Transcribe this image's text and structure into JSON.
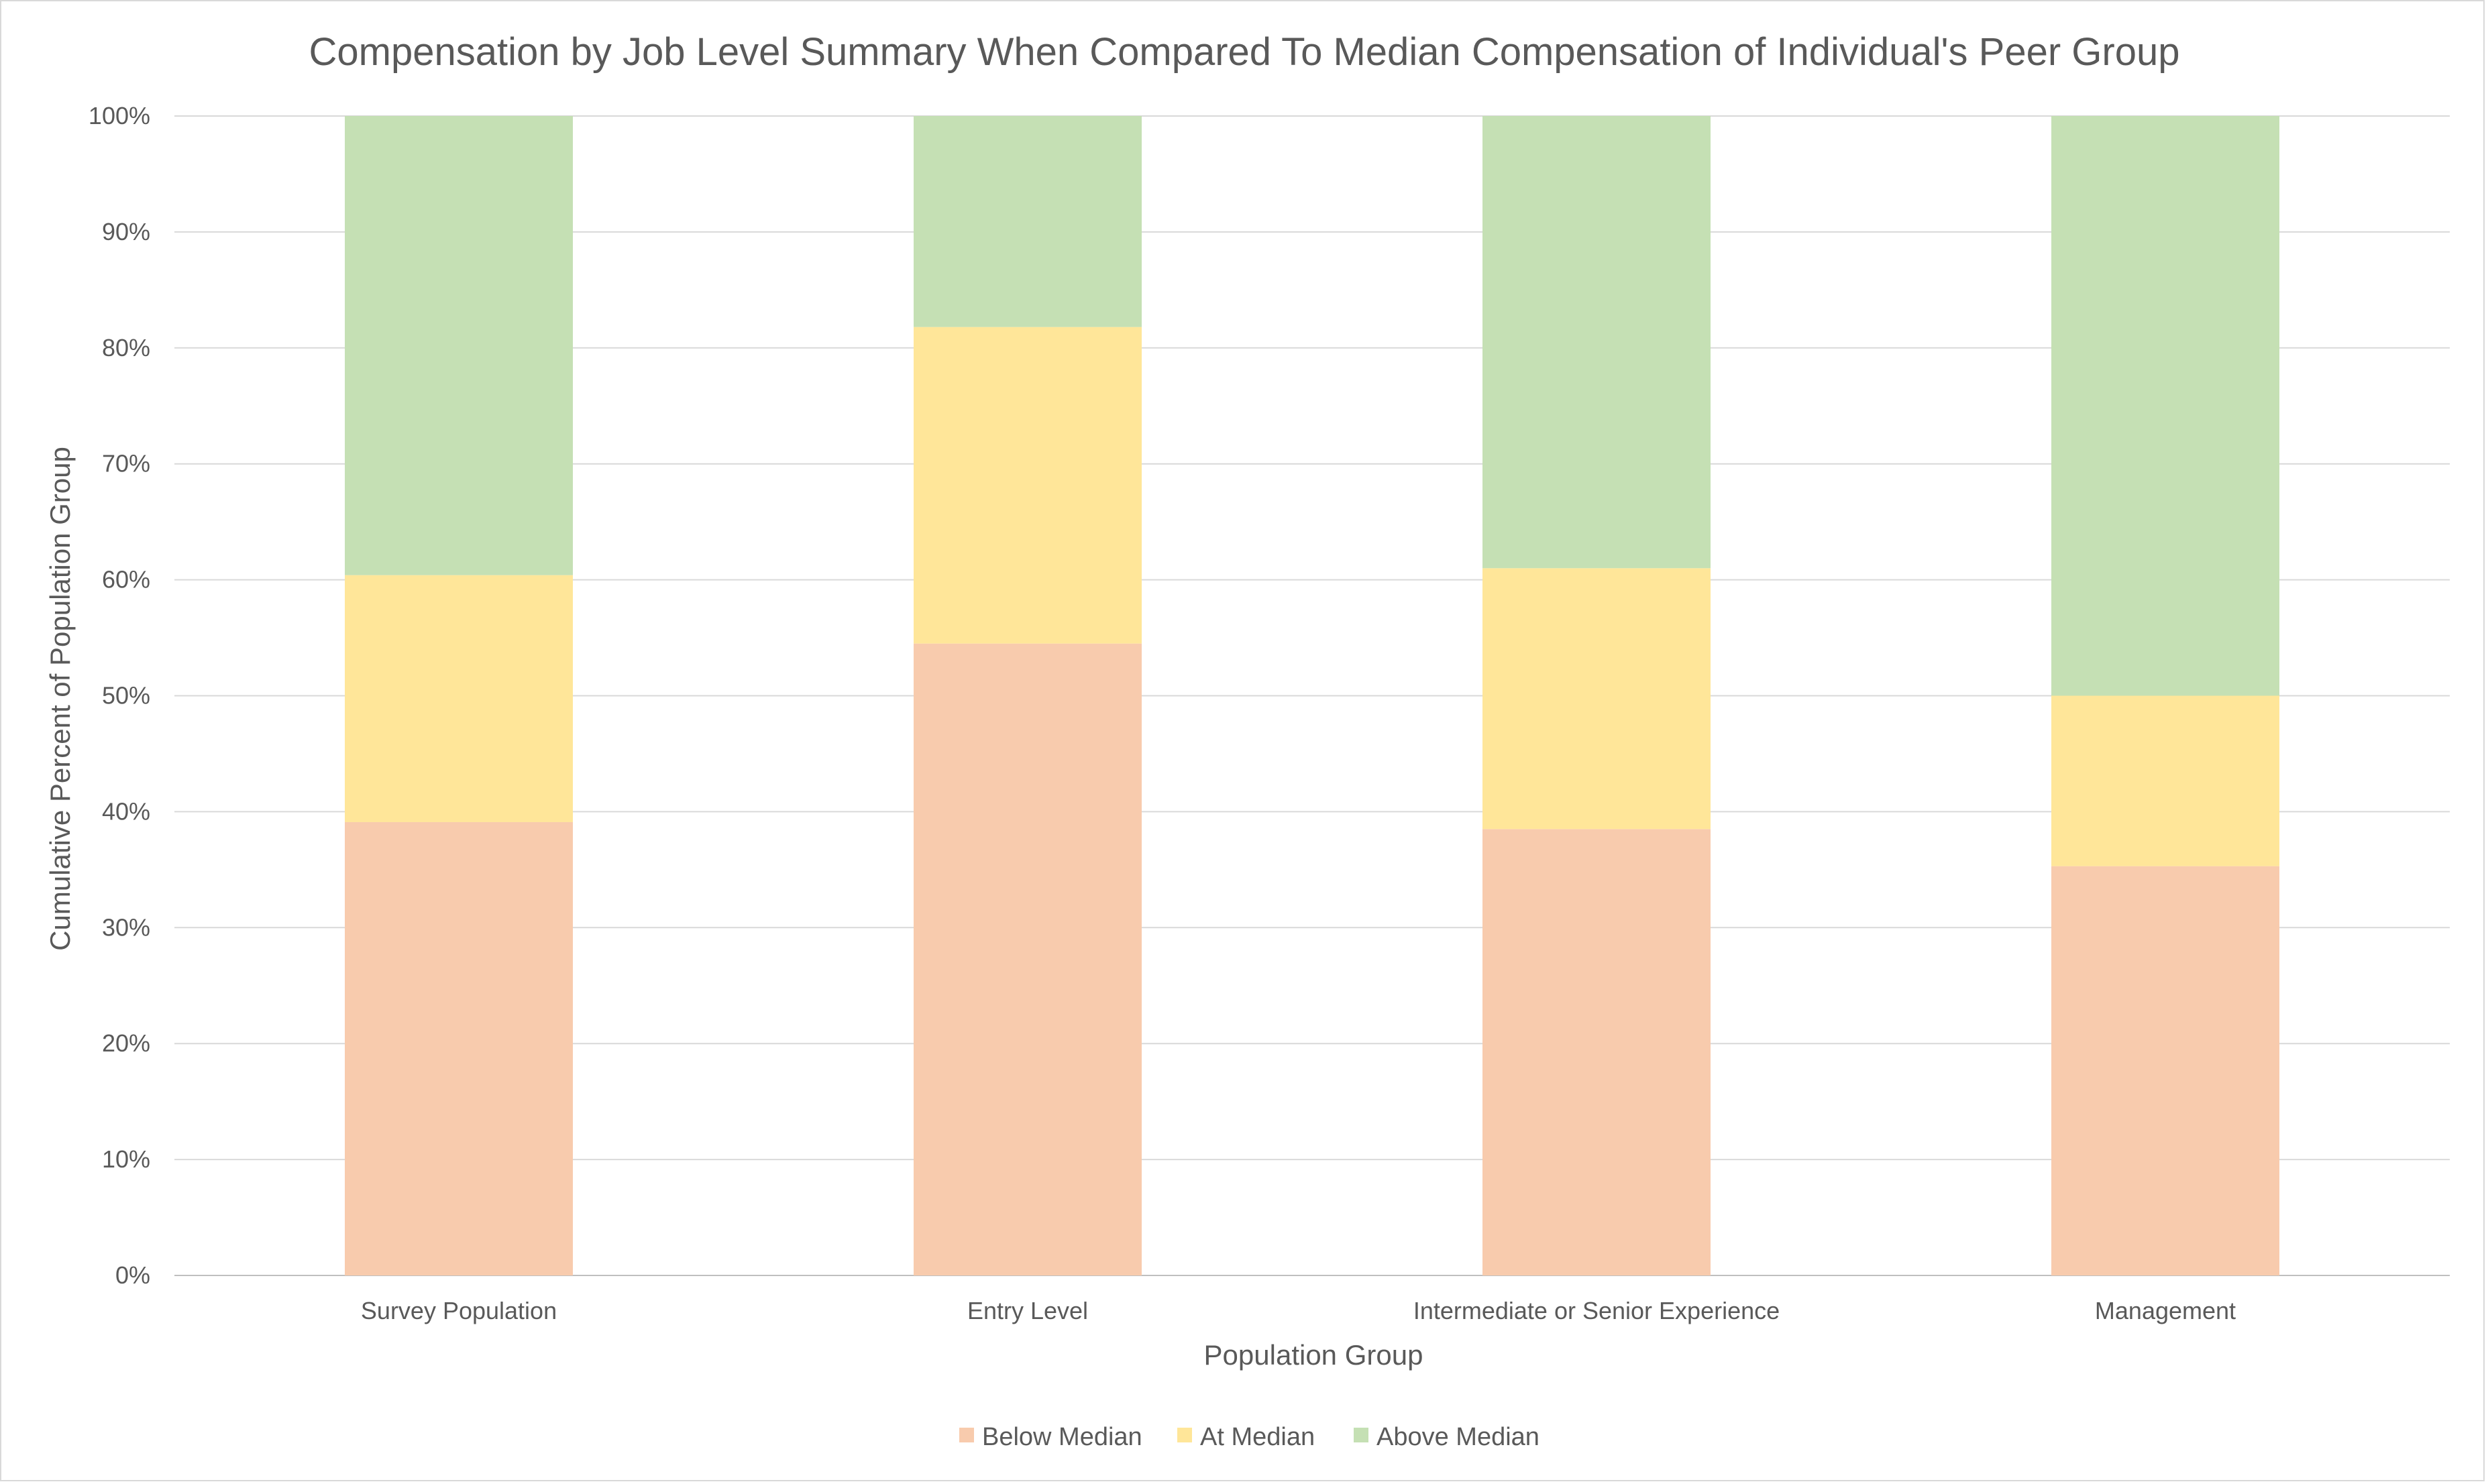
{
  "chart_data": {
    "type": "bar",
    "stacked": true,
    "title": "Compensation by Job Level Summary When Compared To Median Compensation of Individual's Peer Group",
    "xlabel": "Population Group",
    "ylabel": "Cumulative Percent of Population Group",
    "ylim": [
      0,
      100
    ],
    "yticks": [
      "0%",
      "10%",
      "20%",
      "30%",
      "40%",
      "50%",
      "60%",
      "70%",
      "80%",
      "90%",
      "100%"
    ],
    "categories": [
      "Survey Population",
      "Entry Level",
      "Intermediate or Senior Experience",
      "Management"
    ],
    "series": [
      {
        "name": "Below Median",
        "color": "#f8cbad",
        "values": [
          39.1,
          54.5,
          38.5,
          35.3
        ]
      },
      {
        "name": "At Median",
        "color": "#ffe699",
        "values": [
          21.3,
          27.3,
          22.5,
          14.7
        ]
      },
      {
        "name": "Above Median",
        "color": "#c5e0b4",
        "values": [
          39.6,
          18.2,
          39.0,
          50.0
        ]
      }
    ],
    "grid": true,
    "legend_position": "bottom"
  }
}
